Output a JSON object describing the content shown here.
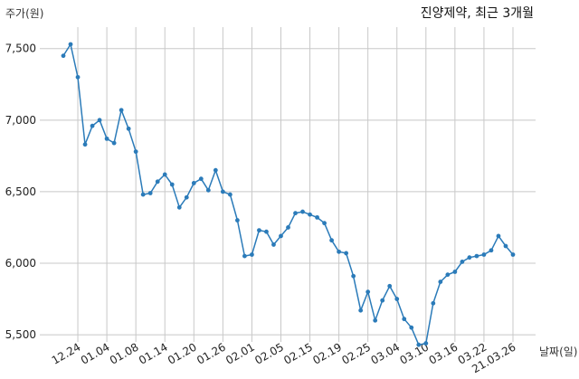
{
  "chart_data": {
    "type": "line",
    "title": "진양제약, 최근 3개월",
    "xlabel": "날짜(일)",
    "ylabel": "주가(원)",
    "ylim": [
      5450,
      7650
    ],
    "yticks": [
      5500,
      6000,
      6500,
      7000,
      7500
    ],
    "ytick_labels": [
      "5,500",
      "6,000",
      "6,500",
      "7,000",
      "7,500"
    ],
    "xtick_labels": [
      "12.24",
      "01.04",
      "01.08",
      "01.14",
      "01.20",
      "01.26",
      "02.01",
      "02.05",
      "02.15",
      "02.19",
      "02.25",
      "03.04",
      "03.10",
      "03.16",
      "03.22",
      "21.03.26"
    ],
    "xtick_indices": [
      2,
      6,
      10,
      14,
      18,
      22,
      26,
      30,
      34,
      38,
      42,
      46,
      50,
      54,
      58,
      62
    ],
    "grid": true,
    "color": "#2b7bb9",
    "series": [
      {
        "values": [
          7450,
          7530,
          7300,
          6830,
          6960,
          7000,
          6870,
          6840,
          7070,
          6940,
          6780,
          6480,
          6490,
          6570,
          6620,
          6550,
          6390,
          6460,
          6560,
          6590,
          6510,
          6650,
          6500,
          6480,
          6300,
          6050,
          6060,
          6230,
          6220,
          6130,
          6190,
          6250,
          6350,
          6360,
          6340,
          6320,
          6280,
          6160,
          6080,
          6070,
          5910,
          5670,
          5800,
          5600,
          5740,
          5840,
          5750,
          5610,
          5550,
          5430,
          5440,
          5720,
          5870,
          5920,
          5940,
          6010,
          6040,
          6050,
          6060,
          6090,
          6190,
          6120,
          6060
        ]
      }
    ]
  }
}
